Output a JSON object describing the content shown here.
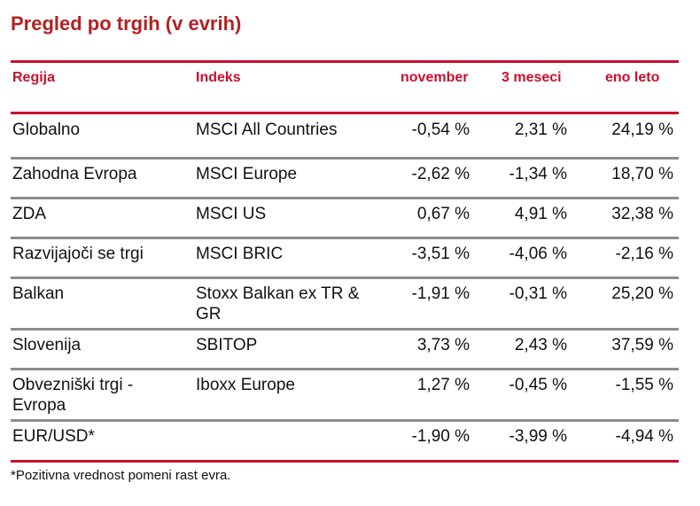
{
  "title": "Pregled po trgih (v evrih)",
  "colors": {
    "accent": "#c8102e",
    "title": "#b22222",
    "divider": "#8c8c8c"
  },
  "headers": {
    "region": "Regija",
    "index": "Indeks",
    "november": "november",
    "three_months": "3 meseci",
    "one_year": "eno leto"
  },
  "rows": [
    {
      "region": "Globalno",
      "index": "MSCI All Countries",
      "november": "-0,54 %",
      "three_months": "2,31 %",
      "one_year": "24,19 %"
    },
    {
      "region": "Zahodna Evropa",
      "index": "MSCI Europe",
      "november": "-2,62 %",
      "three_months": "-1,34 %",
      "one_year": "18,70 %"
    },
    {
      "region": "ZDA",
      "index": "MSCI US",
      "november": "0,67 %",
      "three_months": "4,91 %",
      "one_year": "32,38 %"
    },
    {
      "region": "Razvijajoči se trgi",
      "index": "MSCI BRIC",
      "november": "-3,51 %",
      "three_months": "-4,06 %",
      "one_year": "-2,16 %"
    },
    {
      "region": "Balkan",
      "index": "Stoxx Balkan ex TR & GR",
      "november": "-1,91 %",
      "three_months": "-0,31 %",
      "one_year": "25,20 %"
    },
    {
      "region": "Slovenija",
      "index": "SBITOP",
      "november": "3,73 %",
      "three_months": "2,43 %",
      "one_year": "37,59 %"
    },
    {
      "region": "Obvezniški trgi - Evropa",
      "index": "Iboxx Europe",
      "november": "1,27 %",
      "three_months": "-0,45 %",
      "one_year": "-1,55 %"
    },
    {
      "region": "EUR/USD*",
      "index": "",
      "november": "-1,90 %",
      "three_months": "-3,99 %",
      "one_year": "-4,94 %"
    }
  ],
  "footnote": "*Pozitivna vrednost pomeni rast evra."
}
